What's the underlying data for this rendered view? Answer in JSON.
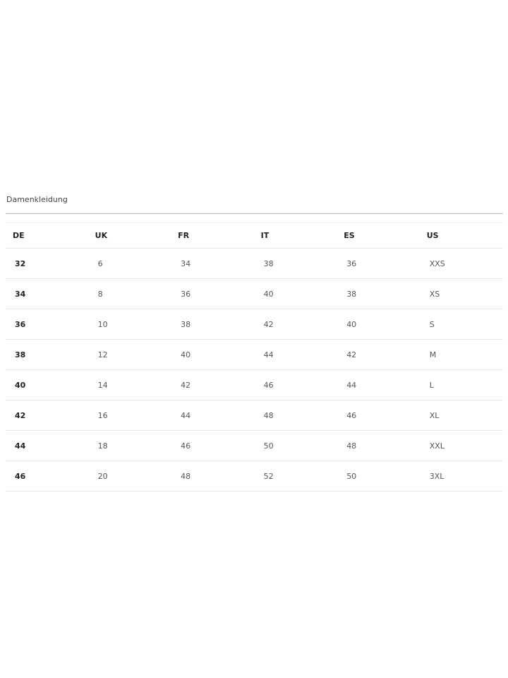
{
  "title": "Damenkleidung",
  "headers": [
    "DE",
    "UK",
    "FR",
    "IT",
    "ES",
    "US"
  ],
  "rows": [
    [
      "32",
      "6",
      "34",
      "38",
      "36",
      "XXS"
    ],
    [
      "34",
      "8",
      "36",
      "40",
      "38",
      "XS"
    ],
    [
      "36",
      "10",
      "38",
      "42",
      "40",
      "S"
    ],
    [
      "38",
      "12",
      "40",
      "44",
      "42",
      "M"
    ],
    [
      "40",
      "14",
      "42",
      "46",
      "44",
      "L"
    ],
    [
      "42",
      "16",
      "44",
      "48",
      "46",
      "XL"
    ],
    [
      "44",
      "18",
      "46",
      "50",
      "48",
      "XXL"
    ],
    [
      "46",
      "20",
      "48",
      "52",
      "50",
      "3XL"
    ]
  ]
}
